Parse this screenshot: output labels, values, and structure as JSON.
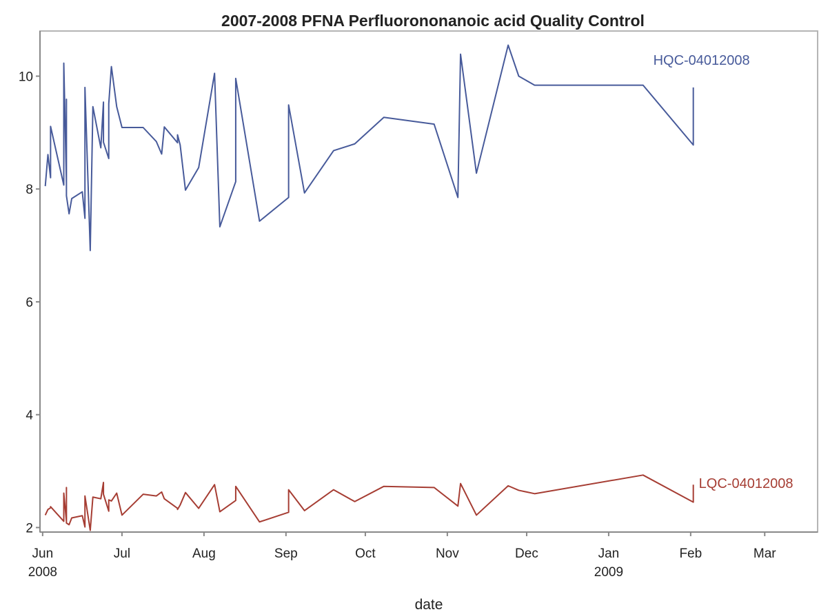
{
  "chart_data": {
    "type": "line",
    "title": "2007-2008 PFNA Perfluorononanoic acid Quality Control",
    "x_label": "date",
    "x": [
      "2008-06-02",
      "2008-06-03",
      "2008-06-04",
      "2008-06-04",
      "2008-06-09",
      "2008-06-09",
      "2008-06-10",
      "2008-06-10",
      "2008-06-10",
      "2008-06-11",
      "2008-06-12",
      "2008-06-16",
      "2008-06-17",
      "2008-06-17",
      "2008-06-19",
      "2008-06-20",
      "2008-06-23",
      "2008-06-24",
      "2008-06-24",
      "2008-06-26",
      "2008-06-26",
      "2008-06-27",
      "2008-06-29",
      "2008-07-01",
      "2008-07-09",
      "2008-07-14",
      "2008-07-16",
      "2008-07-17",
      "2008-07-22",
      "2008-07-22",
      "2008-07-23",
      "2008-07-25",
      "2008-07-30",
      "2008-08-05",
      "2008-08-07",
      "2008-08-13",
      "2008-08-13",
      "2008-08-22",
      "2008-09-02",
      "2008-09-02",
      "2008-09-08",
      "2008-09-19",
      "2008-09-27",
      "2008-10-08",
      "2008-10-27",
      "2008-11-05",
      "2008-11-06",
      "2008-11-12",
      "2008-11-24",
      "2008-11-28",
      "2008-12-04",
      "2009-01-14",
      "2009-02-02",
      "2009-02-02"
    ],
    "series": [
      {
        "name": "HQC-04012008",
        "color": "#475a9a",
        "values": [
          8.05,
          8.61,
          8.2,
          9.11,
          8.07,
          10.23,
          8.1,
          9.59,
          7.88,
          7.56,
          7.83,
          7.95,
          7.48,
          9.8,
          6.91,
          9.46,
          8.73,
          9.54,
          8.83,
          8.54,
          9.51,
          10.17,
          9.46,
          9.09,
          9.09,
          8.84,
          8.62,
          9.1,
          8.82,
          8.96,
          8.78,
          7.98,
          8.38,
          10.05,
          7.33,
          8.13,
          9.96,
          7.43,
          7.85,
          9.49,
          7.93,
          8.68,
          8.8,
          9.27,
          9.15,
          7.85,
          10.39,
          8.28,
          10.55,
          10.0,
          9.84,
          9.84,
          8.78,
          9.8
        ]
      },
      {
        "name": "LQC-04012008",
        "color": "#a63d33",
        "values": [
          2.22,
          2.32,
          2.35,
          2.37,
          2.11,
          2.61,
          2.11,
          2.71,
          2.08,
          2.05,
          2.17,
          2.21,
          2.01,
          2.56,
          1.95,
          2.54,
          2.51,
          2.8,
          2.59,
          2.29,
          2.49,
          2.47,
          2.61,
          2.22,
          2.59,
          2.56,
          2.63,
          2.51,
          2.34,
          2.32,
          2.4,
          2.62,
          2.34,
          2.76,
          2.28,
          2.48,
          2.73,
          2.1,
          2.27,
          2.67,
          2.3,
          2.67,
          2.46,
          2.73,
          2.71,
          2.38,
          2.78,
          2.22,
          2.74,
          2.66,
          2.6,
          2.93,
          2.45,
          2.76
        ]
      }
    ],
    "xlim": [
      "2008-05-31",
      "2009-03-21"
    ],
    "xticks": [
      {
        "value": "2008-06-01",
        "label": "Jun 2008"
      },
      {
        "value": "2008-07-01",
        "label": "Jul"
      },
      {
        "value": "2008-08-01",
        "label": "Aug"
      },
      {
        "value": "2008-09-01",
        "label": "Sep"
      },
      {
        "value": "2008-10-01",
        "label": "Oct"
      },
      {
        "value": "2008-11-01",
        "label": "Nov"
      },
      {
        "value": "2008-12-01",
        "label": "Dec"
      },
      {
        "value": "2009-01-01",
        "label": "Jan 2009"
      },
      {
        "value": "2009-02-01",
        "label": "Feb"
      },
      {
        "value": "2009-03-01",
        "label": "Mar"
      }
    ],
    "ylim": [
      1.92,
      10.8
    ],
    "yticks": [
      2,
      4,
      6,
      8,
      10
    ],
    "grid": false
  }
}
